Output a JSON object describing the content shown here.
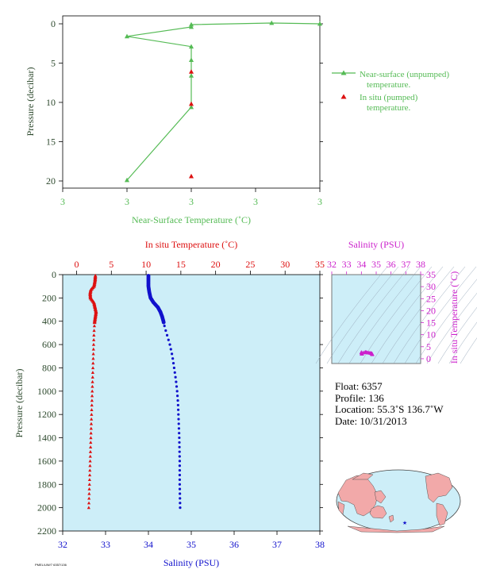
{
  "colors": {
    "green": "#55bb55",
    "red": "#dd1111",
    "blue": "#1111cc",
    "magenta": "#cc22cc",
    "axis_dark": "#2e4a2e",
    "panel_bg": "#cdeef8",
    "land": "#f2a9a9",
    "ocean": "#cdeef8"
  },
  "float_info": {
    "float_label": "Float:",
    "float_value": "6357",
    "profile_label": "Profile:",
    "profile_value": "136",
    "location_label": "Location:",
    "location_value": "55.3˚S  136.7˚W",
    "date_label": "Date:",
    "date_value": "10/31/2013"
  },
  "footer_code": "PMEL/UW/7 6357/136",
  "chart_data": [
    {
      "id": "near_surface",
      "type": "line",
      "title": "",
      "xlabel": "Near-Surface Temperature (˚C)",
      "ylabel": "Pressure (decibar)",
      "x_tick_labels": [
        "3",
        "3",
        "3",
        "3",
        "3"
      ],
      "y_tick_labels": [
        "0",
        "5",
        "10",
        "15",
        "20"
      ],
      "ylim": [
        0,
        22
      ],
      "y_reversed": true,
      "legend_position": "right",
      "series": [
        {
          "name": "Near-surface (unpumped) temperature.",
          "name_lines": [
            "Near-surface (unpumped)",
            "temperature."
          ],
          "marker": "triangle-line",
          "color": "#55bb55",
          "points": [
            {
              "x": 3.04,
              "y": 0.0
            },
            {
              "x": 3.025,
              "y": -0.1
            },
            {
              "x": 3.0,
              "y": 0.1
            },
            {
              "x": 3.0,
              "y": 0.4
            },
            {
              "x": 2.98,
              "y": 1.6
            },
            {
              "x": 3.0,
              "y": 2.9
            },
            {
              "x": 3.0,
              "y": 4.6
            },
            {
              "x": 3.0,
              "y": 6.6
            },
            {
              "x": 3.0,
              "y": 10.6
            },
            {
              "x": 2.98,
              "y": 19.9
            }
          ]
        },
        {
          "name": "In situ (pumped) temperature.",
          "name_lines": [
            "In situ (pumped)",
            "temperature."
          ],
          "marker": "triangle",
          "color": "#dd1111",
          "points": [
            {
              "x": 3.0,
              "y": 6.1
            },
            {
              "x": 3.0,
              "y": 10.2
            },
            {
              "x": 3.0,
              "y": 19.4
            }
          ]
        }
      ]
    },
    {
      "id": "profile",
      "type": "scatter",
      "title": "",
      "top_label": "In situ Temperature (˚C)",
      "bottom_label": "Salinity (PSU)",
      "ylabel": "Pressure (decibar)",
      "top_ticks": [
        0,
        5,
        10,
        15,
        20,
        25,
        30,
        35
      ],
      "bottom_ticks": [
        32,
        33,
        34,
        35,
        36,
        37,
        38
      ],
      "y_ticks": [
        0,
        200,
        400,
        600,
        800,
        1000,
        1200,
        1400,
        1600,
        1800,
        2000,
        2200
      ],
      "ylim": [
        0,
        2200
      ],
      "y_reversed": true,
      "temperature_range": [
        -2,
        35
      ],
      "salinity_range": [
        32,
        38
      ],
      "temperature_profile": [
        [
          10,
          2.7
        ],
        [
          50,
          2.65
        ],
        [
          100,
          2.5
        ],
        [
          130,
          2.05
        ],
        [
          160,
          1.95
        ],
        [
          200,
          2.0
        ],
        [
          240,
          2.5
        ],
        [
          280,
          2.65
        ],
        [
          320,
          2.8
        ],
        [
          360,
          2.7
        ],
        [
          400,
          2.6
        ],
        [
          450,
          2.55
        ],
        [
          500,
          2.5
        ],
        [
          600,
          2.45
        ],
        [
          700,
          2.4
        ],
        [
          800,
          2.35
        ],
        [
          900,
          2.3
        ],
        [
          1000,
          2.25
        ],
        [
          1100,
          2.2
        ],
        [
          1200,
          2.15
        ],
        [
          1300,
          2.1
        ],
        [
          1400,
          2.05
        ],
        [
          1500,
          2.0
        ],
        [
          1600,
          1.95
        ],
        [
          1700,
          1.9
        ],
        [
          1800,
          1.85
        ],
        [
          1900,
          1.8
        ],
        [
          2000,
          1.75
        ]
      ],
      "salinity_profile": [
        [
          10,
          34.0
        ],
        [
          100,
          34.0
        ],
        [
          150,
          34.02
        ],
        [
          200,
          34.05
        ],
        [
          240,
          34.12
        ],
        [
          280,
          34.22
        ],
        [
          320,
          34.28
        ],
        [
          360,
          34.32
        ],
        [
          400,
          34.35
        ],
        [
          450,
          34.38
        ],
        [
          500,
          34.42
        ],
        [
          600,
          34.5
        ],
        [
          700,
          34.56
        ],
        [
          800,
          34.6
        ],
        [
          900,
          34.64
        ],
        [
          1000,
          34.67
        ],
        [
          1100,
          34.69
        ],
        [
          1200,
          34.7
        ],
        [
          1400,
          34.72
        ],
        [
          1600,
          34.73
        ],
        [
          1800,
          34.73
        ],
        [
          2000,
          34.74
        ]
      ]
    },
    {
      "id": "ts_diagram",
      "type": "scatter",
      "title": "",
      "top_label": "Salinity (PSU)",
      "right_label": "In situ Temperature (˚C)",
      "x_ticks": [
        32,
        33,
        34,
        35,
        36,
        37,
        38
      ],
      "y_ticks": [
        0,
        5,
        10,
        15,
        20,
        25,
        30,
        35
      ],
      "xlim": [
        32,
        38
      ],
      "ylim": [
        -2,
        35
      ],
      "points_summary": {
        "salinity_range": [
          34.0,
          34.75
        ],
        "temperature_range": [
          1.75,
          2.8
        ]
      }
    }
  ]
}
